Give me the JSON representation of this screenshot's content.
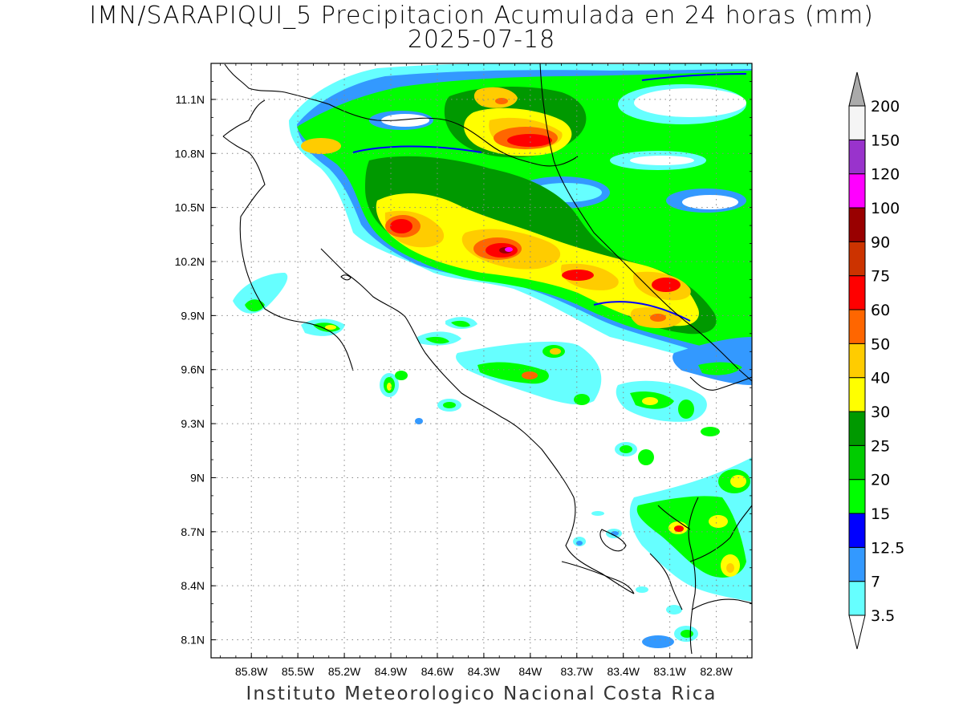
{
  "title": {
    "line1": "IMN/SARAPIQUI_5 Precipitacion Acumulada en 24 horas (mm)",
    "line2": "2025-07-18"
  },
  "footer": "Instituto Meteorologico Nacional Costa Rica",
  "map": {
    "lon_range": [
      -86.06,
      -82.57
    ],
    "lat_range": [
      8.0,
      11.3
    ],
    "lat_ticks": [
      "11.1N",
      "10.8N",
      "10.5N",
      "10.2N",
      "9.9N",
      "9.6N",
      "9.3N",
      "9N",
      "8.7N",
      "8.4N",
      "8.1N"
    ],
    "lat_values": [
      11.1,
      10.8,
      10.5,
      10.2,
      9.9,
      9.6,
      9.3,
      9.0,
      8.7,
      8.4,
      8.1
    ],
    "lon_ticks": [
      "85.8W",
      "85.5W",
      "85.2W",
      "84.9W",
      "84.6W",
      "84.3W",
      "84W",
      "83.7W",
      "83.4W",
      "83.1W",
      "82.8W"
    ],
    "lon_values": [
      -85.8,
      -85.5,
      -85.2,
      -84.9,
      -84.6,
      -84.3,
      -84.0,
      -83.7,
      -83.4,
      -83.1,
      -82.8
    ],
    "grid": "dotted"
  },
  "colorbar": {
    "labels": [
      "3.5",
      "7",
      "12.5",
      "15",
      "20",
      "25",
      "30",
      "40",
      "50",
      "60",
      "75",
      "90",
      "100",
      "120",
      "150",
      "200"
    ],
    "colors": [
      "#66ffff",
      "#3399ff",
      "#0000ff",
      "#00ff00",
      "#00cc00",
      "#009900",
      "#ffff00",
      "#ffcc00",
      "#ff6600",
      "#ff0000",
      "#cc3300",
      "#990000",
      "#ff00ff",
      "#9933cc",
      "#f5f5f5",
      "#aaaaaa"
    ]
  }
}
